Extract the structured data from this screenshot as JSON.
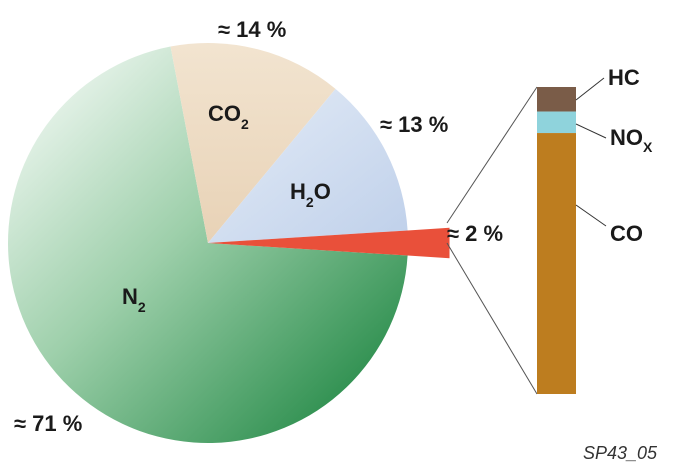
{
  "chart_data": {
    "type": "pie",
    "title": "",
    "slices": [
      {
        "label": "N",
        "label_sub": "2",
        "pct_label": "≈ 71 %",
        "value": 71,
        "color": "#1b8c40"
      },
      {
        "label": "CO",
        "label_sub": "2",
        "pct_label": "≈ 14 %",
        "value": 14,
        "color": "#ecd8be"
      },
      {
        "label": "H",
        "label_sub": "2",
        "label_post": "O",
        "pct_label": "≈ 13 %",
        "value": 13,
        "color": "#cfdcef"
      },
      {
        "label": "",
        "pct_label": "≈ 2 %",
        "value": 2,
        "color": "#e9503a"
      }
    ],
    "breakdown": {
      "of_slice": "≈ 2 %",
      "segments": [
        {
          "label": "HC",
          "label_sub": "",
          "share": 0.08,
          "color": "#7a5c48"
        },
        {
          "label": "NO",
          "label_sub": "X",
          "share": 0.07,
          "color": "#8fd3dc"
        },
        {
          "label": "CO",
          "label_sub": "",
          "share": 0.85,
          "color": "#bd7d1f"
        }
      ]
    }
  },
  "figure_code": "SP43_05"
}
